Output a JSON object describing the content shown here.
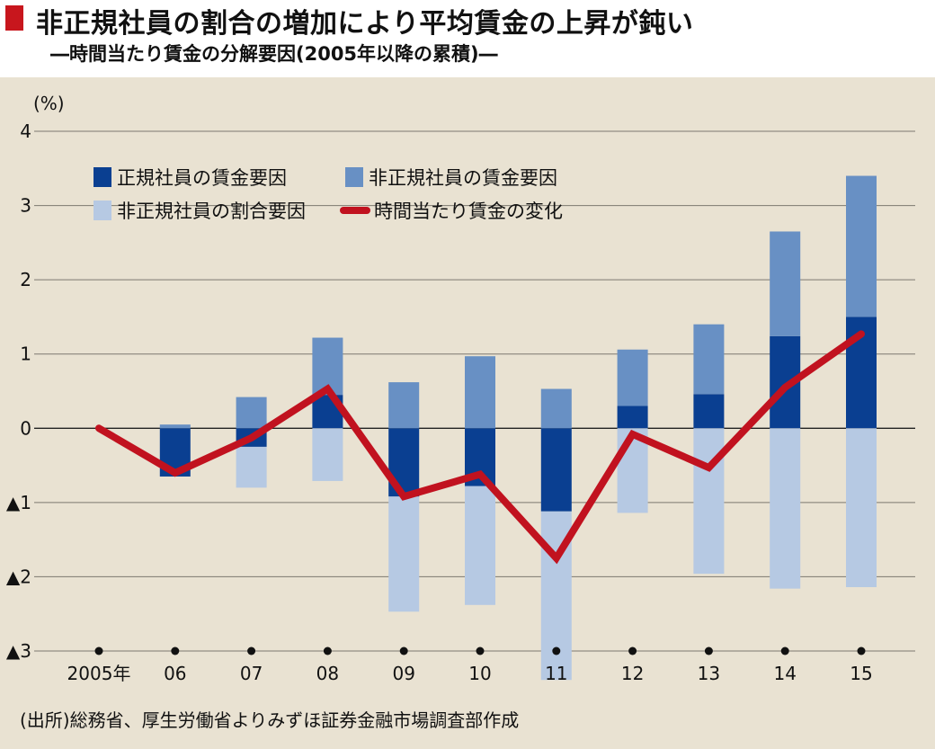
{
  "title": "非正規社員の割合の増加により平均賃金の上昇が鈍い",
  "subtitle": "―時間当たり賃金の分解要因(2005年以降の累積)―",
  "source": "(出所)総務省、厚生労働省よりみずほ証券金融市場調査部作成",
  "colors": {
    "regular_wage": "#0a3f91",
    "nonregular_wage": "#6890c4",
    "nonregular_share": "#b6c9e3",
    "hourly_change": "#c1121f",
    "accent": "#c8161d",
    "background": "#e9e2d2"
  },
  "chart_data": {
    "type": "bar",
    "stacked": true,
    "ylabel": "(%)",
    "ylim": [
      -3,
      4
    ],
    "yticks": [
      4,
      3,
      2,
      1,
      0,
      -1,
      -2,
      -3
    ],
    "ytick_labels": [
      "4",
      "3",
      "2",
      "1",
      "0",
      "▲1",
      "▲2",
      "▲3"
    ],
    "categories": [
      "2005年",
      "06",
      "07",
      "08",
      "09",
      "10",
      "11",
      "12",
      "13",
      "14",
      "15"
    ],
    "grid": true,
    "legend_position": "top-left",
    "series": [
      {
        "name": "正規社員の賃金要因",
        "kind": "bar",
        "color_key": "regular_wage",
        "values": [
          0,
          -0.65,
          -0.25,
          0.45,
          -0.92,
          -0.78,
          -1.12,
          0.3,
          0.46,
          1.24,
          1.5
        ]
      },
      {
        "name": "非正規社員の賃金要因",
        "kind": "bar",
        "color_key": "nonregular_wage",
        "values": [
          0,
          0.05,
          0.42,
          0.77,
          0.62,
          0.97,
          0.53,
          0.76,
          0.94,
          1.41,
          1.9
        ]
      },
      {
        "name": "非正規社員の割合要因",
        "kind": "bar",
        "color_key": "nonregular_share",
        "values": [
          0,
          0.0,
          -0.55,
          -0.71,
          -1.55,
          -1.6,
          -2.27,
          -1.14,
          -1.96,
          -2.16,
          -2.14
        ]
      },
      {
        "name": "時間当たり賃金の変化",
        "kind": "line",
        "color_key": "hourly_change",
        "values": [
          0,
          -0.6,
          -0.13,
          0.53,
          -0.92,
          -0.62,
          -1.75,
          -0.08,
          -0.53,
          0.55,
          1.27
        ]
      }
    ]
  }
}
